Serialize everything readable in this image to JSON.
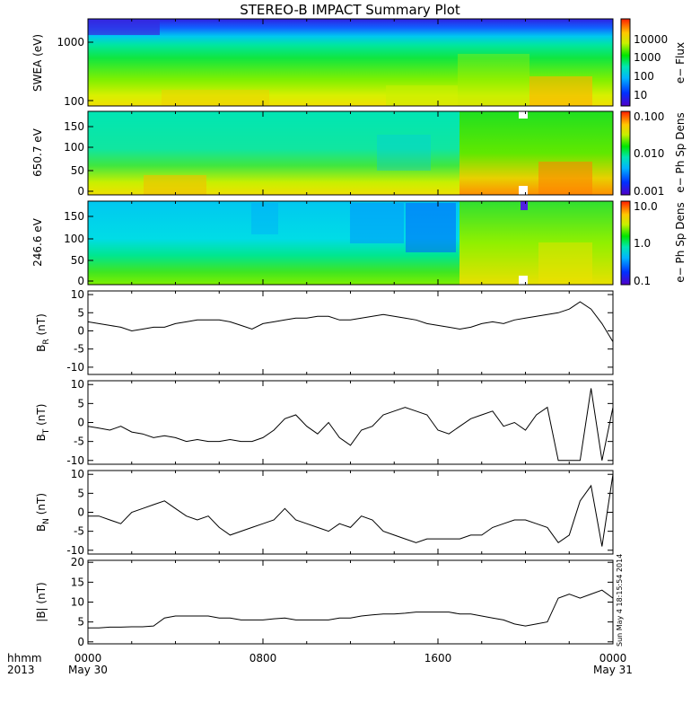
{
  "title": "STEREO-B IMPACT Summary Plot",
  "time_axis": {
    "corner_top": "hhmm",
    "corner_bottom": "2013",
    "ticks": [
      {
        "hour": 0,
        "label": "0000",
        "date": "May 30"
      },
      {
        "hour": 8,
        "label": "0800",
        "date": ""
      },
      {
        "hour": 16,
        "label": "1600",
        "date": ""
      },
      {
        "hour": 24,
        "label": "0000",
        "date": "May 31"
      }
    ]
  },
  "stamp": "Sun May  4 18:15:54 2014",
  "spectrograms": [
    {
      "id": "swea",
      "ylabel": "SWEA (eV)",
      "yticks": [
        "1000",
        "100"
      ],
      "cbar_label": "e− Flux",
      "cbar_ticks": [
        "10000",
        "1000",
        "100",
        "10"
      ],
      "colormap": "rainbow"
    },
    {
      "id": "pad650",
      "ylabel": "650.7 eV",
      "yticks": [
        "150",
        "100",
        "50",
        "0"
      ],
      "cbar_label": "e− Ph Sp Dens",
      "cbar_ticks": [
        "0.100",
        "0.010",
        "0.001"
      ],
      "colormap": "rainbow"
    },
    {
      "id": "pad246",
      "ylabel": "246.6 eV",
      "yticks": [
        "150",
        "100",
        "50",
        "0"
      ],
      "cbar_label": "e− Ph Sp Dens",
      "cbar_ticks": [
        "10.0",
        "1.0",
        "0.1"
      ],
      "colormap": "rainbow"
    }
  ],
  "chart_data": [
    {
      "type": "line",
      "id": "BR",
      "ylabel_main": "B",
      "ylabel_sub": "R",
      "ylabel_unit": " (nT)",
      "ylim": [
        -12,
        11
      ],
      "yticks": [
        10,
        5,
        0,
        -5,
        -10
      ],
      "x_hours": [
        0,
        0.5,
        1,
        1.5,
        2,
        2.5,
        3,
        3.5,
        4,
        4.5,
        5,
        5.5,
        6,
        6.5,
        7,
        7.5,
        8,
        8.5,
        9,
        9.5,
        10,
        10.5,
        11,
        11.5,
        12,
        12.5,
        13,
        13.5,
        14,
        14.5,
        15,
        15.5,
        16,
        16.5,
        17,
        17.5,
        18,
        18.5,
        19,
        19.5,
        20,
        20.5,
        21,
        21.5,
        22,
        22.5,
        23,
        23.5,
        24
      ],
      "values": [
        2.5,
        2,
        1.5,
        1,
        0,
        0.5,
        1,
        1,
        2,
        2.5,
        3,
        3,
        3,
        2.5,
        1.5,
        0.5,
        2,
        2.5,
        3,
        3.5,
        3.5,
        4,
        4,
        3,
        3,
        3.5,
        4,
        4.5,
        4,
        3.5,
        3,
        2,
        1.5,
        1,
        0.5,
        1,
        2,
        2.5,
        2,
        3,
        3.5,
        4,
        4.5,
        5,
        6,
        8,
        6,
        2,
        -3
      ]
    },
    {
      "type": "line",
      "id": "BT",
      "ylabel_main": "B",
      "ylabel_sub": "T",
      "ylabel_unit": " (nT)",
      "ylim": [
        -11,
        11
      ],
      "yticks": [
        10,
        5,
        0,
        -5,
        -10
      ],
      "x_hours": [
        0,
        0.5,
        1,
        1.5,
        2,
        2.5,
        3,
        3.5,
        4,
        4.5,
        5,
        5.5,
        6,
        6.5,
        7,
        7.5,
        8,
        8.5,
        9,
        9.5,
        10,
        10.5,
        11,
        11.5,
        12,
        12.5,
        13,
        13.5,
        14,
        14.5,
        15,
        15.5,
        16,
        16.5,
        17,
        17.5,
        18,
        18.5,
        19,
        19.5,
        20,
        20.5,
        21,
        21.5,
        22,
        22.5,
        23,
        23.5,
        24
      ],
      "values": [
        -1,
        -1.5,
        -2,
        -1,
        -2.5,
        -3,
        -4,
        -3.5,
        -4,
        -5,
        -4.5,
        -5,
        -5,
        -4.5,
        -5,
        -5,
        -4,
        -2,
        1,
        2,
        -1,
        -3,
        0,
        -4,
        -6,
        -2,
        -1,
        2,
        3,
        4,
        3,
        2,
        -2,
        -3,
        -1,
        1,
        2,
        3,
        -1,
        0,
        -2,
        2,
        4,
        -10,
        -10,
        -10,
        9,
        -10,
        4
      ]
    },
    {
      "type": "line",
      "id": "BN",
      "ylabel_main": "B",
      "ylabel_sub": "N",
      "ylabel_unit": " (nT)",
      "ylim": [
        -11,
        11
      ],
      "yticks": [
        10,
        5,
        0,
        -5,
        -10
      ],
      "x_hours": [
        0,
        0.5,
        1,
        1.5,
        2,
        2.5,
        3,
        3.5,
        4,
        4.5,
        5,
        5.5,
        6,
        6.5,
        7,
        7.5,
        8,
        8.5,
        9,
        9.5,
        10,
        10.5,
        11,
        11.5,
        12,
        12.5,
        13,
        13.5,
        14,
        14.5,
        15,
        15.5,
        16,
        16.5,
        17,
        17.5,
        18,
        18.5,
        19,
        19.5,
        20,
        20.5,
        21,
        21.5,
        22,
        22.5,
        23,
        23.5,
        24
      ],
      "values": [
        -1,
        -1,
        -2,
        -3,
        0,
        1,
        2,
        3,
        1,
        -1,
        -2,
        -1,
        -4,
        -6,
        -5,
        -4,
        -3,
        -2,
        1,
        -2,
        -3,
        -4,
        -5,
        -3,
        -4,
        -1,
        -2,
        -5,
        -6,
        -7,
        -8,
        -7,
        -7,
        -7,
        -7,
        -6,
        -6,
        -4,
        -3,
        -2,
        -2,
        -3,
        -4,
        -8,
        -6,
        3,
        7,
        -9,
        10
      ]
    },
    {
      "type": "line",
      "id": "Bmag",
      "ylabel_main": "|B|",
      "ylabel_sub": "",
      "ylabel_unit": " (nT)",
      "ylim": [
        -0.5,
        20.5
      ],
      "yticks": [
        20,
        15,
        10,
        5,
        0
      ],
      "x_hours": [
        0,
        0.5,
        1,
        1.5,
        2,
        2.5,
        3,
        3.5,
        4,
        4.5,
        5,
        5.5,
        6,
        6.5,
        7,
        7.5,
        8,
        8.5,
        9,
        9.5,
        10,
        10.5,
        11,
        11.5,
        12,
        12.5,
        13,
        13.5,
        14,
        14.5,
        15,
        15.5,
        16,
        16.5,
        17,
        17.5,
        18,
        18.5,
        19,
        19.5,
        20,
        20.5,
        21,
        21.5,
        22,
        22.5,
        23,
        23.5,
        24
      ],
      "values": [
        3.5,
        3.5,
        3.7,
        3.7,
        3.8,
        3.8,
        4,
        6,
        6.5,
        6.5,
        6.5,
        6.5,
        6,
        6,
        5.5,
        5.5,
        5.5,
        5.8,
        6,
        5.5,
        5.5,
        5.5,
        5.5,
        6,
        6,
        6.5,
        6.8,
        7,
        7,
        7.2,
        7.5,
        7.5,
        7.5,
        7.5,
        7,
        7,
        6.5,
        6,
        5.5,
        4.5,
        4,
        4.5,
        5,
        11,
        12,
        11,
        12,
        13,
        11
      ]
    }
  ]
}
